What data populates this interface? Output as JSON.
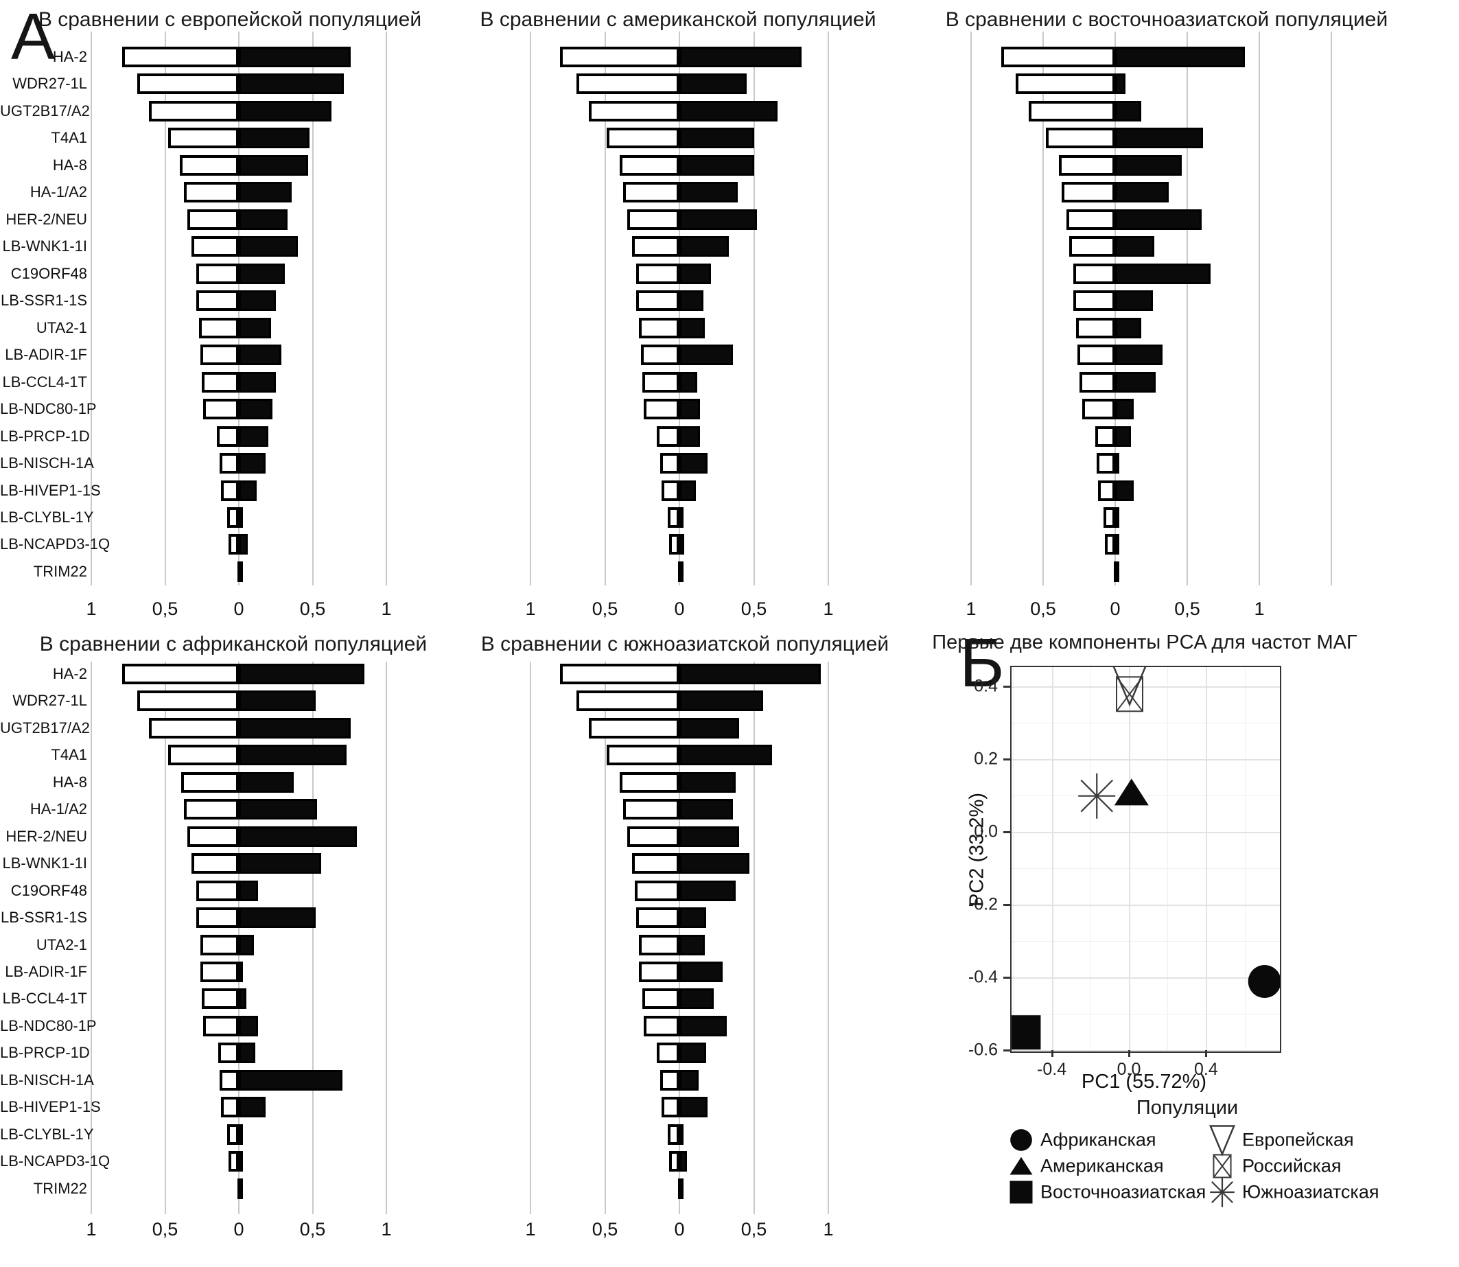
{
  "panel_labels": {
    "a": "А",
    "b": "Б"
  },
  "axis_ticks": [
    "1",
    "0,5",
    "0",
    "0,5",
    "1"
  ],
  "chart_data": {
    "categories": [
      "HA-2",
      "WDR27-1L",
      "UGT2B17/A2",
      "T4A1",
      "HA-8",
      "HA-1/A2",
      "HER-2/NEU",
      "LB-WNK1-1I",
      "C19ORF48",
      "LB-SSR1-1S",
      "UTA2-1",
      "LB-ADIR-1F",
      "LB-CCL4-1T",
      "LB-NDC80-1P",
      "LB-PRCP-1D",
      "LB-NISCH-1A",
      "LB-HIVEP1-1S",
      "LB-CLYBL-1Y",
      "LB-NCAPD3-1Q",
      "TRIM22"
    ],
    "tornado_charts": [
      {
        "type": "bar",
        "title": "В сравнении с европейской популяцией",
        "white_left": [
          0.79,
          0.69,
          0.61,
          0.48,
          0.4,
          0.37,
          0.35,
          0.32,
          0.29,
          0.29,
          0.27,
          0.26,
          0.25,
          0.24,
          0.15,
          0.13,
          0.12,
          0.08,
          0.07,
          0.01
        ],
        "black_right": [
          0.76,
          0.71,
          0.63,
          0.48,
          0.47,
          0.36,
          0.33,
          0.4,
          0.31,
          0.25,
          0.22,
          0.29,
          0.25,
          0.23,
          0.2,
          0.18,
          0.12,
          0.03,
          0.06,
          0.01
        ],
        "xlim": [
          -1,
          1
        ]
      },
      {
        "type": "bar",
        "title": "В сравнении с американской популяцией",
        "white_left": [
          0.8,
          0.69,
          0.61,
          0.49,
          0.4,
          0.38,
          0.35,
          0.32,
          0.29,
          0.29,
          0.27,
          0.26,
          0.25,
          0.24,
          0.15,
          0.13,
          0.12,
          0.08,
          0.07,
          0.01
        ],
        "black_right": [
          0.82,
          0.45,
          0.66,
          0.5,
          0.5,
          0.39,
          0.52,
          0.33,
          0.21,
          0.16,
          0.17,
          0.36,
          0.12,
          0.14,
          0.14,
          0.19,
          0.11,
          0.01,
          0.03,
          0.01
        ],
        "xlim": [
          -1,
          1
        ]
      },
      {
        "type": "bar",
        "title": "В сравнении с восточноазиатской популяцией",
        "white_left": [
          0.79,
          0.69,
          0.6,
          0.48,
          0.39,
          0.37,
          0.34,
          0.32,
          0.29,
          0.29,
          0.27,
          0.26,
          0.25,
          0.23,
          0.14,
          0.13,
          0.12,
          0.08,
          0.07,
          0.01
        ],
        "black_right": [
          0.9,
          0.07,
          0.18,
          0.61,
          0.46,
          0.37,
          0.6,
          0.27,
          0.66,
          0.26,
          0.18,
          0.33,
          0.28,
          0.13,
          0.11,
          0.03,
          0.13,
          0.01,
          0.02,
          0.01
        ],
        "xlim": [
          -1,
          1
        ]
      },
      {
        "type": "bar",
        "title": "В сравнении с африканской популяцией",
        "white_left": [
          0.79,
          0.69,
          0.61,
          0.48,
          0.39,
          0.37,
          0.35,
          0.32,
          0.29,
          0.29,
          0.26,
          0.26,
          0.25,
          0.24,
          0.14,
          0.13,
          0.12,
          0.08,
          0.07,
          0.01
        ],
        "black_right": [
          0.85,
          0.52,
          0.76,
          0.73,
          0.37,
          0.53,
          0.8,
          0.56,
          0.13,
          0.52,
          0.1,
          0.02,
          0.05,
          0.13,
          0.11,
          0.7,
          0.18,
          0.01,
          0.01,
          0.01
        ],
        "xlim": [
          -1,
          1
        ]
      },
      {
        "type": "bar",
        "title": "В сравнении с южноазиатской популяцией",
        "white_left": [
          0.8,
          0.69,
          0.61,
          0.49,
          0.4,
          0.38,
          0.35,
          0.32,
          0.3,
          0.29,
          0.27,
          0.27,
          0.25,
          0.24,
          0.15,
          0.13,
          0.12,
          0.08,
          0.07,
          0.01
        ],
        "black_right": [
          0.95,
          0.56,
          0.4,
          0.62,
          0.38,
          0.36,
          0.4,
          0.47,
          0.38,
          0.18,
          0.17,
          0.29,
          0.23,
          0.32,
          0.18,
          0.13,
          0.19,
          0.01,
          0.05,
          0.01
        ],
        "xlim": [
          -1,
          1
        ]
      }
    ],
    "pca": {
      "type": "scatter",
      "title": "Первые две компоненты PCA для частот МАГ",
      "xlabel": "PC1 (55.72%)",
      "ylabel": "PC2 (33.2%)",
      "xlim": [
        -0.62,
        0.78
      ],
      "ylim": [
        -0.6,
        0.46
      ],
      "x_tick_values": [
        -0.4,
        0.0,
        0.4
      ],
      "x_tick_labels": [
        "-0.4",
        "0.0",
        "0.4"
      ],
      "y_tick_values": [
        0.4,
        0.2,
        0.0,
        -0.2,
        -0.4,
        -0.6
      ],
      "y_tick_labels": [
        "0.4",
        "0.2",
        "0.0",
        "-0.2",
        "-0.4",
        "-0.6"
      ],
      "points": [
        {
          "label": "Африканская",
          "marker": "filled-circle",
          "pc1": 0.7,
          "pc2": -0.41
        },
        {
          "label": "Американская",
          "marker": "filled-triangle",
          "pc1": 0.01,
          "pc2": 0.11
        },
        {
          "label": "Восточноазиатская",
          "marker": "filled-square",
          "pc1": -0.55,
          "pc2": -0.55
        },
        {
          "label": "Европейская",
          "marker": "open-triangle-down",
          "pc1": 0.0,
          "pc2": 0.41
        },
        {
          "label": "Российская",
          "marker": "crossed-square",
          "pc1": 0.0,
          "pc2": 0.38
        },
        {
          "label": "Южноазиатская",
          "marker": "asterisk",
          "pc1": -0.17,
          "pc2": 0.1
        }
      ]
    }
  },
  "legend": {
    "title": "Популяции",
    "items": [
      {
        "label": "Африканская",
        "marker": "filled-circle"
      },
      {
        "label": "Американская",
        "marker": "filled-triangle"
      },
      {
        "label": "Восточноазиатская",
        "marker": "filled-square"
      },
      {
        "label": "Европейская",
        "marker": "open-triangle-down"
      },
      {
        "label": "Российская",
        "marker": "crossed-square"
      },
      {
        "label": "Южноазиатская",
        "marker": "asterisk"
      }
    ]
  }
}
